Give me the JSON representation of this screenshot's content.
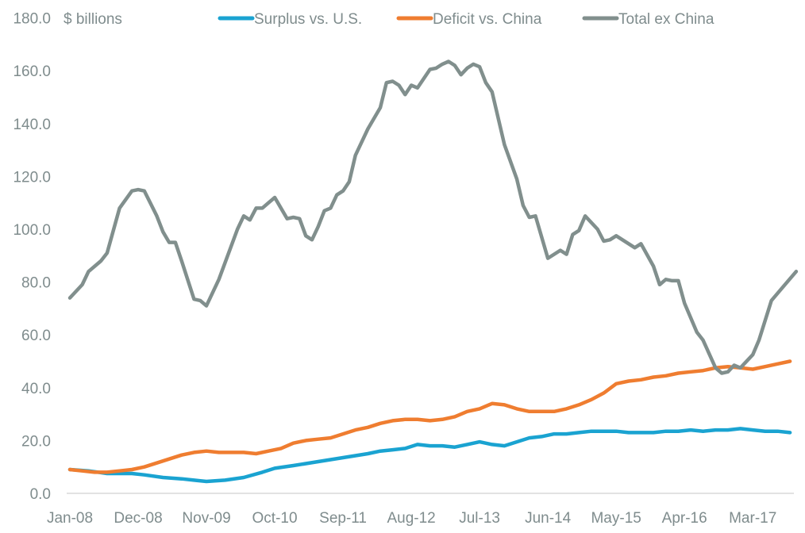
{
  "chart_data": {
    "type": "line",
    "title": "",
    "ylabel": "$ billions",
    "xlabel": "",
    "ylim": [
      0,
      180
    ],
    "y_ticks": [
      "0.0",
      "20.0",
      "40.0",
      "60.0",
      "80.0",
      "100.0",
      "120.0",
      "140.0",
      "160.0",
      "180.0"
    ],
    "x_start": "Jan-08",
    "x_end": "Sep-17",
    "x_frequency": "monthly",
    "x_tick_labels": [
      "Jan-08",
      "Dec-08",
      "Nov-09",
      "Oct-10",
      "Sep-11",
      "Aug-12",
      "Jul-13",
      "Jun-14",
      "May-15",
      "Apr-16",
      "Mar-17"
    ],
    "grid": false,
    "legend_position": "top",
    "series": [
      {
        "name": "Surplus vs. U.S.",
        "color": "#1aa3d1",
        "anchors": [
          [
            0,
            9
          ],
          [
            3,
            8.5
          ],
          [
            6,
            7.5
          ],
          [
            10,
            7.5
          ],
          [
            12,
            7
          ],
          [
            15,
            6
          ],
          [
            18,
            5.5
          ],
          [
            20,
            5
          ],
          [
            22,
            4.5
          ],
          [
            25,
            5
          ],
          [
            28,
            6
          ],
          [
            31,
            8
          ],
          [
            33,
            9.5
          ],
          [
            36,
            10.5
          ],
          [
            40,
            12
          ],
          [
            44,
            13.5
          ],
          [
            48,
            15
          ],
          [
            50,
            16
          ],
          [
            52,
            16.5
          ],
          [
            54,
            17
          ],
          [
            56,
            18.5
          ],
          [
            58,
            18
          ],
          [
            60,
            18
          ],
          [
            62,
            17.5
          ],
          [
            64,
            18.5
          ],
          [
            66,
            19.5
          ],
          [
            68,
            18.5
          ],
          [
            70,
            18
          ],
          [
            72,
            19.5
          ],
          [
            74,
            21
          ],
          [
            76,
            21.5
          ],
          [
            78,
            22.5
          ],
          [
            80,
            22.5
          ],
          [
            82,
            23
          ],
          [
            84,
            23.5
          ],
          [
            86,
            23.5
          ],
          [
            88,
            23.5
          ],
          [
            90,
            23
          ],
          [
            92,
            23
          ],
          [
            94,
            23
          ],
          [
            96,
            23.5
          ],
          [
            98,
            23.5
          ],
          [
            100,
            24
          ],
          [
            102,
            23.5
          ],
          [
            104,
            24
          ],
          [
            106,
            24
          ],
          [
            108,
            24.5
          ],
          [
            110,
            24
          ],
          [
            112,
            23.5
          ],
          [
            114,
            23.5
          ],
          [
            116,
            23
          ]
        ]
      },
      {
        "name": "Deficit vs. China",
        "color": "#ef7d30",
        "anchors": [
          [
            0,
            9
          ],
          [
            2,
            8.5
          ],
          [
            4,
            8
          ],
          [
            6,
            8
          ],
          [
            8,
            8.5
          ],
          [
            10,
            9
          ],
          [
            12,
            10
          ],
          [
            14,
            11.5
          ],
          [
            16,
            13
          ],
          [
            18,
            14.5
          ],
          [
            20,
            15.5
          ],
          [
            22,
            16
          ],
          [
            24,
            15.5
          ],
          [
            26,
            15.5
          ],
          [
            28,
            15.5
          ],
          [
            30,
            15
          ],
          [
            32,
            16
          ],
          [
            34,
            17
          ],
          [
            36,
            19
          ],
          [
            38,
            20
          ],
          [
            40,
            20.5
          ],
          [
            42,
            21
          ],
          [
            44,
            22.5
          ],
          [
            46,
            24
          ],
          [
            48,
            25
          ],
          [
            50,
            26.5
          ],
          [
            52,
            27.5
          ],
          [
            54,
            28
          ],
          [
            56,
            28
          ],
          [
            58,
            27.5
          ],
          [
            60,
            28
          ],
          [
            62,
            29
          ],
          [
            64,
            31
          ],
          [
            66,
            32
          ],
          [
            68,
            34
          ],
          [
            70,
            33.5
          ],
          [
            72,
            32
          ],
          [
            74,
            31
          ],
          [
            76,
            31
          ],
          [
            78,
            31
          ],
          [
            80,
            32
          ],
          [
            82,
            33.5
          ],
          [
            84,
            35.5
          ],
          [
            86,
            38
          ],
          [
            88,
            41.5
          ],
          [
            90,
            42.5
          ],
          [
            92,
            43
          ],
          [
            94,
            44
          ],
          [
            96,
            44.5
          ],
          [
            98,
            45.5
          ],
          [
            100,
            46
          ],
          [
            102,
            46.5
          ],
          [
            104,
            47.5
          ],
          [
            106,
            48
          ],
          [
            108,
            47.5
          ],
          [
            110,
            47
          ],
          [
            112,
            48
          ],
          [
            114,
            49
          ],
          [
            116,
            50
          ]
        ]
      },
      {
        "name": "Total ex China",
        "color": "#818f8d",
        "anchors": [
          [
            0,
            74
          ],
          [
            2,
            79
          ],
          [
            3,
            84
          ],
          [
            5,
            88
          ],
          [
            6,
            91
          ],
          [
            8,
            108
          ],
          [
            10,
            114.5
          ],
          [
            11,
            115
          ],
          [
            12,
            114.5
          ],
          [
            14,
            105
          ],
          [
            15,
            99
          ],
          [
            16,
            95
          ],
          [
            17,
            95
          ],
          [
            18,
            88
          ],
          [
            20,
            73.5
          ],
          [
            21,
            73
          ],
          [
            22,
            71
          ],
          [
            24,
            81
          ],
          [
            27,
            100
          ],
          [
            28,
            105
          ],
          [
            29,
            103.5
          ],
          [
            30,
            108
          ],
          [
            31,
            108
          ],
          [
            32,
            110
          ],
          [
            33,
            112
          ],
          [
            35,
            104
          ],
          [
            36,
            104.5
          ],
          [
            37,
            104
          ],
          [
            38,
            97.5
          ],
          [
            39,
            96
          ],
          [
            40,
            101
          ],
          [
            41,
            107
          ],
          [
            42,
            108
          ],
          [
            43,
            113
          ],
          [
            44,
            114.5
          ],
          [
            45,
            118
          ],
          [
            46,
            128
          ],
          [
            48,
            138
          ],
          [
            50,
            146
          ],
          [
            51,
            155.5
          ],
          [
            52,
            156
          ],
          [
            53,
            154.5
          ],
          [
            54,
            151
          ],
          [
            55,
            154.5
          ],
          [
            56,
            153.5
          ],
          [
            58,
            160.5
          ],
          [
            59,
            161
          ],
          [
            60,
            162.5
          ],
          [
            61,
            163.5
          ],
          [
            62,
            162
          ],
          [
            63,
            158.5
          ],
          [
            64,
            161
          ],
          [
            65,
            162.5
          ],
          [
            66,
            161.5
          ],
          [
            67,
            155.5
          ],
          [
            68,
            152
          ],
          [
            70,
            132
          ],
          [
            72,
            119
          ],
          [
            73,
            109
          ],
          [
            74,
            104.5
          ],
          [
            75,
            105
          ],
          [
            77,
            89
          ],
          [
            78,
            90.5
          ],
          [
            79,
            92
          ],
          [
            80,
            90.5
          ],
          [
            81,
            98
          ],
          [
            82,
            99.5
          ],
          [
            83,
            105
          ],
          [
            85,
            100
          ],
          [
            86,
            95.5
          ],
          [
            87,
            96
          ],
          [
            88,
            97.5
          ],
          [
            89,
            96
          ],
          [
            91,
            93
          ],
          [
            92,
            94.5
          ],
          [
            94,
            86
          ],
          [
            95,
            79
          ],
          [
            96,
            81
          ],
          [
            97,
            80.5
          ],
          [
            98,
            80.5
          ],
          [
            99,
            72
          ],
          [
            101,
            61
          ],
          [
            102,
            58
          ],
          [
            104,
            47.5
          ],
          [
            105,
            45.5
          ],
          [
            106,
            46
          ],
          [
            107,
            48.5
          ],
          [
            108,
            47.5
          ],
          [
            110,
            52.5
          ],
          [
            111,
            58
          ],
          [
            113,
            73
          ],
          [
            115,
            78.5
          ],
          [
            117,
            84
          ]
        ]
      }
    ]
  }
}
